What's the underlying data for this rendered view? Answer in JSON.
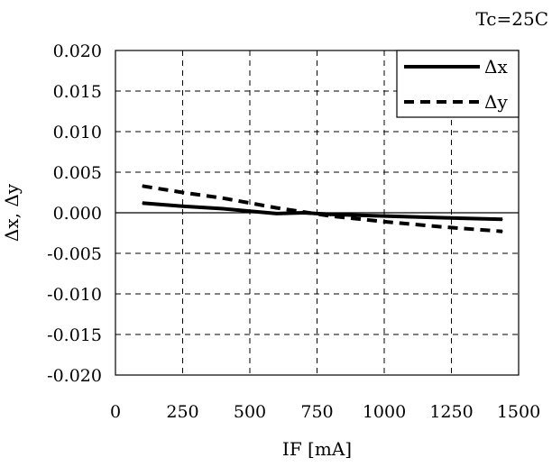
{
  "chart_data": {
    "type": "line",
    "annotation": "Tc=25C",
    "xlabel": "IF [mA]",
    "ylabel": "Δx, Δy",
    "xlim": [
      0,
      1500
    ],
    "ylim": [
      -0.02,
      0.02
    ],
    "xticks": [
      0,
      250,
      500,
      750,
      1000,
      1250,
      1500
    ],
    "xtick_labels": [
      "0",
      "250",
      "500",
      "750",
      "1000",
      "1250",
      "1500"
    ],
    "yticks": [
      0.02,
      0.015,
      0.01,
      0.005,
      0.0,
      -0.005,
      -0.01,
      -0.015,
      -0.02
    ],
    "ytick_labels": [
      "0.020",
      "0.015",
      "0.010",
      "0.005",
      "0.000",
      "-0.005",
      "-0.010",
      "-0.015",
      "-0.020"
    ],
    "grid": true,
    "legend_position": "top-right",
    "series": [
      {
        "name": "Δx",
        "style": "solid",
        "color": "#000000",
        "x": [
          100,
          250,
          400,
          500,
          600,
          700,
          800,
          1000,
          1200,
          1440
        ],
        "y": [
          0.0012,
          0.0008,
          0.0005,
          0.0002,
          -0.0001,
          0.0,
          -0.0002,
          -0.0004,
          -0.0006,
          -0.0008
        ]
      },
      {
        "name": "Δy",
        "style": "dashed",
        "color": "#000000",
        "x": [
          100,
          250,
          400,
          500,
          600,
          700,
          800,
          1000,
          1200,
          1440
        ],
        "y": [
          0.0033,
          0.0025,
          0.0018,
          0.0012,
          0.0006,
          0.0001,
          -0.0004,
          -0.0011,
          -0.0017,
          -0.0023
        ]
      }
    ]
  }
}
